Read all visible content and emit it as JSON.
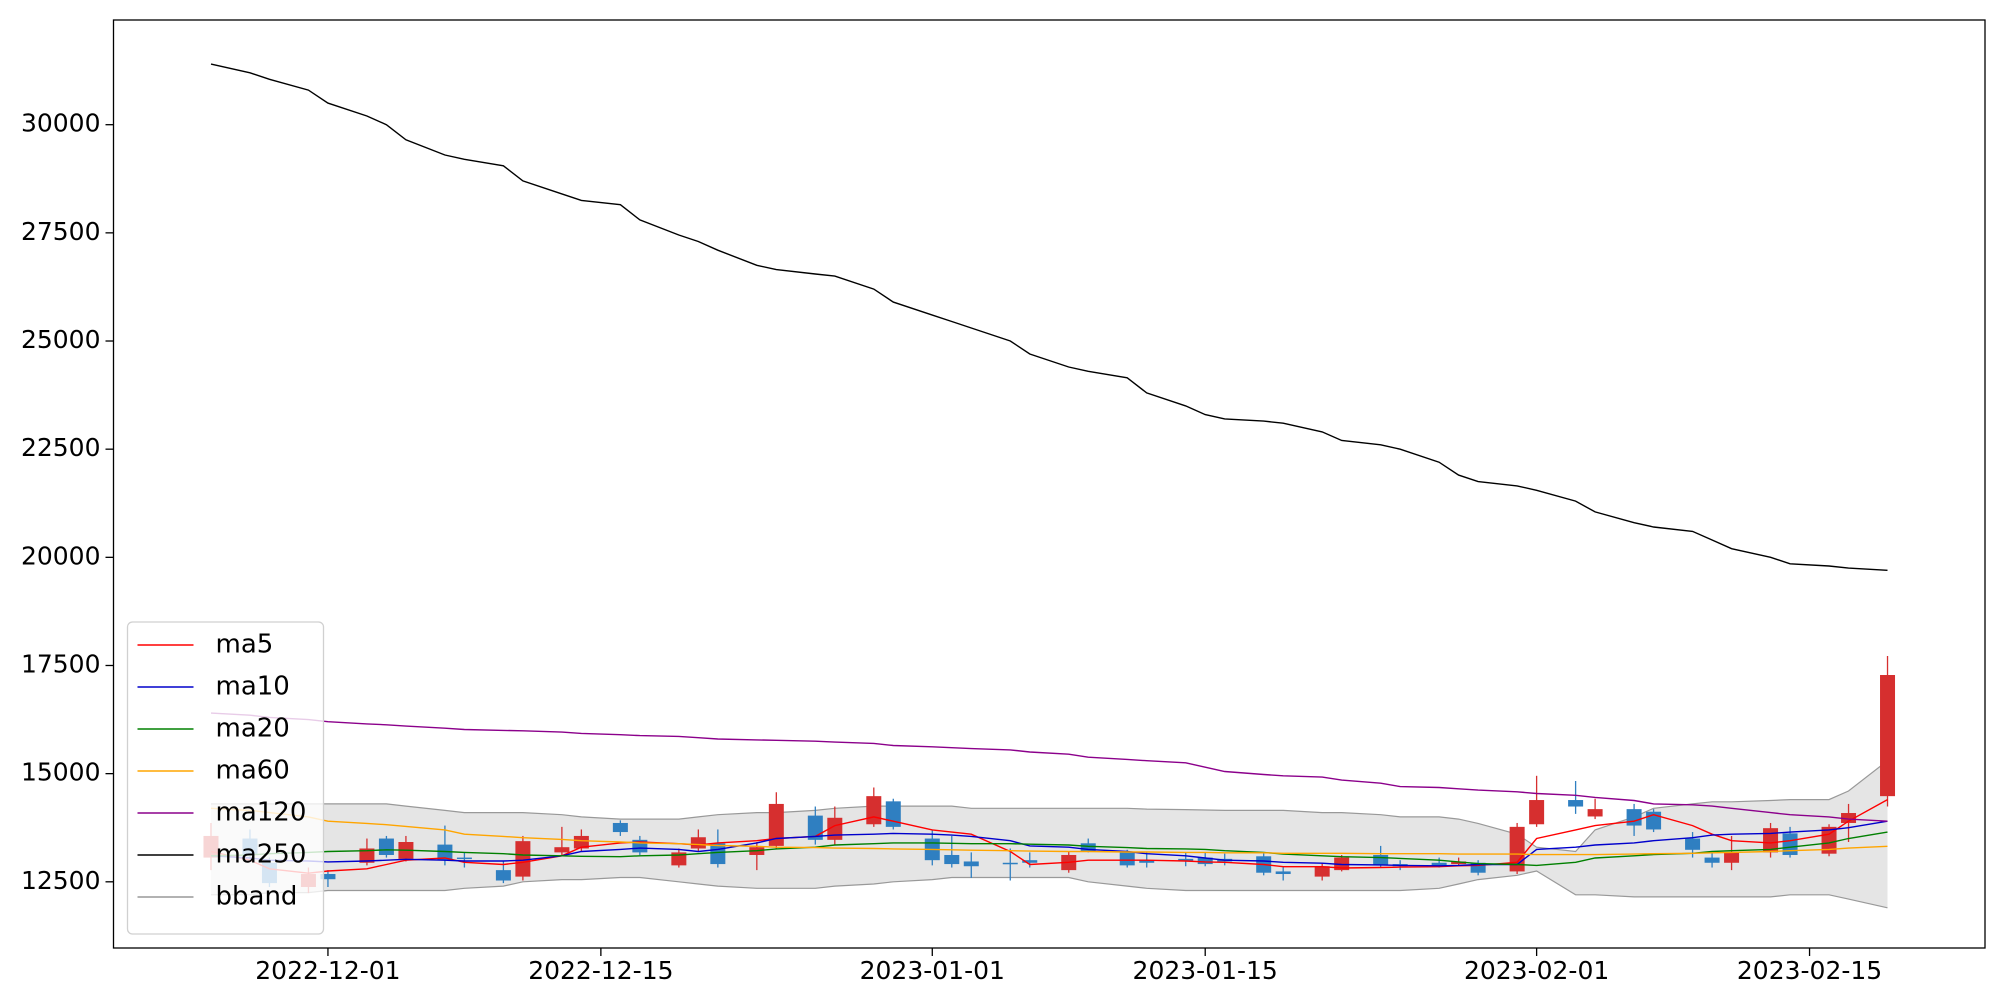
{
  "chart_data": {
    "type": "candlestick",
    "x": [
      "2022-11-25",
      "2022-11-27",
      "2022-11-28",
      "2022-11-30",
      "2022-12-01",
      "2022-12-03",
      "2022-12-04",
      "2022-12-05",
      "2022-12-07",
      "2022-12-08",
      "2022-12-10",
      "2022-12-11",
      "2022-12-13",
      "2022-12-14",
      "2022-12-16",
      "2022-12-17",
      "2022-12-19",
      "2022-12-20",
      "2022-12-21",
      "2022-12-23",
      "2022-12-24",
      "2022-12-26",
      "2022-12-27",
      "2022-12-29",
      "2022-12-30",
      "2023-01-01",
      "2023-01-02",
      "2023-01-03",
      "2023-01-05",
      "2023-01-06",
      "2023-01-08",
      "2023-01-09",
      "2023-01-11",
      "2023-01-12",
      "2023-01-14",
      "2023-01-15",
      "2023-01-16",
      "2023-01-18",
      "2023-01-19",
      "2023-01-21",
      "2023-01-22",
      "2023-01-24",
      "2023-01-25",
      "2023-01-27",
      "2023-01-28",
      "2023-01-29",
      "2023-01-31",
      "2023-02-01",
      "2023-02-03",
      "2023-02-04",
      "2023-02-06",
      "2023-02-07",
      "2023-02-09",
      "2023-02-10",
      "2023-02-11",
      "2023-02-13",
      "2023-02-14",
      "2023-02-16",
      "2023-02-17",
      "2023-02-19"
    ],
    "candles": {
      "up_color": "#d62f2f",
      "down_color": "#2f7fc1",
      "open": [
        13060,
        13500,
        12940,
        12380,
        12680,
        12940,
        13500,
        13030,
        13360,
        13060,
        12770,
        12620,
        13180,
        13270,
        13860,
        13470,
        12880,
        13270,
        13390,
        13120,
        13330,
        14030,
        13470,
        13830,
        14360,
        13500,
        13120,
        12970,
        12940,
        13000,
        12770,
        13390,
        13180,
        13000,
        13030,
        13060,
        13030,
        13090,
        12740,
        12620,
        12770,
        13120,
        12910,
        12940,
        12910,
        12940,
        12740,
        13830,
        14390,
        14010,
        14180,
        14120,
        13500,
        13060,
        12940,
        13180,
        13620,
        13150,
        13860,
        14480
      ],
      "high": [
        13860,
        13710,
        13060,
        12830,
        12770,
        13500,
        13560,
        13560,
        13800,
        13180,
        12970,
        13560,
        13770,
        13710,
        13920,
        13560,
        13270,
        13710,
        13710,
        13420,
        14570,
        14240,
        14240,
        14680,
        14420,
        13710,
        13560,
        13180,
        13270,
        13180,
        13210,
        13500,
        13240,
        13180,
        13180,
        13180,
        13150,
        13180,
        12860,
        12940,
        13120,
        13330,
        13000,
        13060,
        13060,
        13000,
        13860,
        14950,
        14830,
        14420,
        14300,
        14180,
        13650,
        13180,
        13560,
        13860,
        13770,
        13830,
        14300,
        17720
      ],
      "low": [
        12770,
        12970,
        12380,
        12240,
        12380,
        12880,
        13060,
        12970,
        12880,
        12830,
        12470,
        12530,
        13120,
        13210,
        13560,
        13120,
        12830,
        13210,
        12830,
        12770,
        13270,
        13360,
        13360,
        13770,
        13710,
        12880,
        12830,
        12590,
        12530,
        12830,
        12710,
        13180,
        12830,
        12830,
        12860,
        12860,
        12880,
        12650,
        12530,
        12530,
        12740,
        12830,
        12770,
        12830,
        12860,
        12650,
        12680,
        13770,
        14070,
        13950,
        13560,
        13650,
        13060,
        12830,
        12770,
        13060,
        13060,
        13090,
        13420,
        14240
      ],
      "close": [
        13560,
        13120,
        12470,
        12680,
        12560,
        13270,
        13120,
        13420,
        13000,
        13030,
        12530,
        13440,
        13300,
        13560,
        13650,
        13180,
        13180,
        13530,
        12910,
        13300,
        14300,
        13470,
        13980,
        14480,
        13770,
        13000,
        12910,
        12860,
        12910,
        12940,
        13120,
        13210,
        12880,
        12940,
        12970,
        12910,
        12970,
        12710,
        12680,
        12860,
        13060,
        12880,
        12860,
        12880,
        12970,
        12710,
        13770,
        14390,
        14240,
        14180,
        13800,
        13710,
        13240,
        12940,
        13180,
        13740,
        13120,
        13770,
        14090,
        17280
      ]
    },
    "series": [
      {
        "name": "ma5",
        "color": "#ff0000",
        "values": [
          13200,
          13000,
          12800,
          12700,
          12750,
          12800,
          12900,
          13000,
          13050,
          12950,
          12900,
          12950,
          13100,
          13300,
          13400,
          13420,
          13380,
          13350,
          13400,
          13450,
          13500,
          13550,
          13800,
          14000,
          13900,
          13700,
          13650,
          13600,
          13200,
          12900,
          12950,
          13000,
          13000,
          13000,
          12980,
          12960,
          12950,
          12900,
          12850,
          12850,
          12820,
          12830,
          12840,
          12850,
          12870,
          12880,
          12950,
          13500,
          13700,
          13800,
          13900,
          14050,
          13800,
          13600,
          13450,
          13400,
          13450,
          13600,
          13900,
          14400
        ]
      },
      {
        "name": "ma10",
        "color": "#0000cc",
        "values": [
          13100,
          13050,
          13000,
          12980,
          12960,
          12980,
          13000,
          13020,
          13000,
          12980,
          12980,
          13000,
          13100,
          13200,
          13250,
          13280,
          13250,
          13200,
          13250,
          13400,
          13500,
          13550,
          13580,
          13600,
          13620,
          13600,
          13580,
          13550,
          13450,
          13330,
          13300,
          13250,
          13200,
          13150,
          13100,
          13050,
          13000,
          12980,
          12950,
          12930,
          12900,
          12890,
          12880,
          12870,
          12880,
          12900,
          12900,
          13250,
          13300,
          13350,
          13400,
          13450,
          13520,
          13580,
          13600,
          13620,
          13650,
          13700,
          13750,
          13900
        ]
      },
      {
        "name": "ma20",
        "color": "#008000",
        "values": [
          13100,
          13120,
          13150,
          13180,
          13200,
          13220,
          13240,
          13230,
          13200,
          13180,
          13150,
          13120,
          13100,
          13090,
          13080,
          13100,
          13120,
          13150,
          13180,
          13220,
          13260,
          13300,
          13350,
          13380,
          13400,
          13400,
          13390,
          13380,
          13380,
          13370,
          13350,
          13320,
          13290,
          13270,
          13260,
          13250,
          13220,
          13180,
          13140,
          13100,
          13080,
          13060,
          13040,
          13000,
          12960,
          12920,
          12900,
          12880,
          12950,
          13050,
          13100,
          13130,
          13160,
          13200,
          13220,
          13250,
          13300,
          13400,
          13500,
          13650
        ]
      },
      {
        "name": "ma60",
        "color": "#ffa500",
        "values": [
          14200,
          14150,
          14100,
          14000,
          13900,
          13850,
          13820,
          13780,
          13700,
          13600,
          13550,
          13520,
          13480,
          13450,
          13420,
          13400,
          13380,
          13360,
          13340,
          13320,
          13300,
          13290,
          13280,
          13270,
          13260,
          13250,
          13240,
          13230,
          13220,
          13210,
          13200,
          13200,
          13190,
          13190,
          13180,
          13180,
          13170,
          13170,
          13160,
          13160,
          13160,
          13150,
          13150,
          13150,
          13140,
          13140,
          13140,
          13130,
          13130,
          13130,
          13140,
          13150,
          13160,
          13170,
          13180,
          13200,
          13220,
          13250,
          13280,
          13320
        ]
      },
      {
        "name": "ma120",
        "color": "#8b008b",
        "values": [
          16400,
          16350,
          16300,
          16250,
          16200,
          16150,
          16130,
          16100,
          16050,
          16020,
          16000,
          15990,
          15960,
          15930,
          15900,
          15880,
          15860,
          15830,
          15800,
          15780,
          15770,
          15750,
          15730,
          15700,
          15650,
          15620,
          15600,
          15580,
          15550,
          15500,
          15450,
          15380,
          15330,
          15300,
          15250,
          15150,
          15050,
          14980,
          14950,
          14920,
          14850,
          14780,
          14700,
          14680,
          14650,
          14620,
          14580,
          14540,
          14500,
          14450,
          14380,
          14300,
          14280,
          14250,
          14200,
          14100,
          14050,
          14000,
          13950,
          13900
        ]
      },
      {
        "name": "ma250",
        "color": "#000000",
        "values": [
          31400,
          31200,
          31050,
          30800,
          30500,
          30200,
          30000,
          29650,
          29300,
          29200,
          29050,
          28700,
          28400,
          28250,
          28150,
          27800,
          27450,
          27300,
          27100,
          26750,
          26650,
          26550,
          26500,
          26200,
          25900,
          25600,
          25450,
          25300,
          25000,
          24700,
          24400,
          24300,
          24150,
          23800,
          23500,
          23300,
          23200,
          23150,
          23100,
          22900,
          22700,
          22600,
          22500,
          22200,
          21900,
          21750,
          21650,
          21550,
          21300,
          21050,
          20800,
          20700,
          20600,
          20400,
          20200,
          20000,
          19850,
          19800,
          19750,
          19700
        ]
      }
    ],
    "band": {
      "name": "bband",
      "color": "#999999",
      "fill": "#e5e5e5",
      "upper": [
        14300,
        14300,
        14300,
        14300,
        14300,
        14300,
        14300,
        14250,
        14150,
        14100,
        14100,
        14100,
        14050,
        14000,
        13950,
        13950,
        13950,
        14000,
        14050,
        14100,
        14100,
        14150,
        14200,
        14250,
        14250,
        14250,
        14250,
        14200,
        14200,
        14200,
        14200,
        14200,
        14200,
        14180,
        14170,
        14160,
        14150,
        14150,
        14150,
        14100,
        14100,
        14050,
        14000,
        14000,
        13950,
        13850,
        13600,
        13300,
        13200,
        13700,
        14000,
        14200,
        14300,
        14350,
        14350,
        14380,
        14400,
        14400,
        14600,
        15300
      ],
      "lower": [
        12200,
        12200,
        12250,
        12250,
        12300,
        12300,
        12300,
        12300,
        12300,
        12350,
        12400,
        12500,
        12550,
        12550,
        12600,
        12600,
        12500,
        12450,
        12400,
        12350,
        12350,
        12350,
        12400,
        12450,
        12500,
        12550,
        12600,
        12600,
        12600,
        12600,
        12600,
        12500,
        12400,
        12350,
        12300,
        12300,
        12300,
        12300,
        12300,
        12300,
        12300,
        12300,
        12300,
        12350,
        12450,
        12550,
        12650,
        12750,
        12200,
        12200,
        12150,
        12150,
        12150,
        12150,
        12150,
        12150,
        12200,
        12200,
        12100,
        11900
      ]
    },
    "xlim": [
      "2022-11-20",
      "2023-02-24"
    ],
    "xticks": [
      "2022-12-01",
      "2022-12-15",
      "2023-01-01",
      "2023-01-15",
      "2023-02-01",
      "2023-02-15"
    ],
    "ylim": [
      10970,
      32420
    ],
    "yticks": [
      12500,
      15000,
      17500,
      20000,
      22500,
      25000,
      27500,
      30000
    ],
    "legend": "lower left"
  }
}
